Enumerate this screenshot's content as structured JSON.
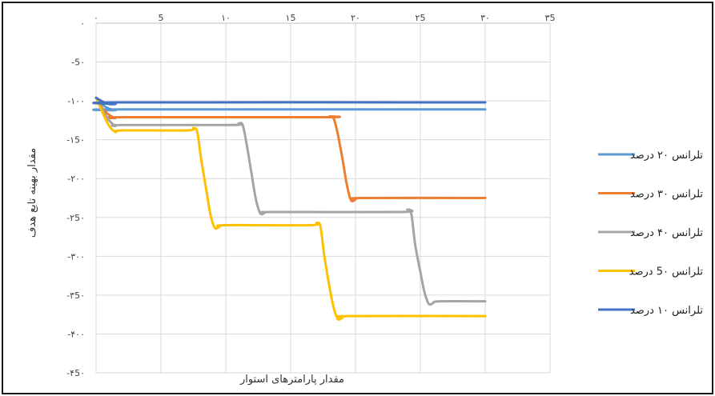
{
  "chart_data": {
    "type": "line",
    "title": "",
    "xlabel": "مقدار پارامترهای استوار",
    "ylabel": "مقدار بهینه تابع هدف",
    "xlim": [
      0,
      35
    ],
    "ylim": [
      -450,
      0
    ],
    "x_ticks": [
      0,
      5,
      10,
      15,
      20,
      25,
      30,
      35
    ],
    "x_tick_labels": [
      "۰",
      "5",
      "۱۰",
      "۱5",
      "۲۰",
      "۲5",
      "۳۰",
      "۳5"
    ],
    "y_ticks": [
      0,
      -50,
      -100,
      -150,
      -200,
      -250,
      -300,
      -350,
      -400,
      -450
    ],
    "y_tick_labels": [
      "۰",
      "-5۰",
      "-۱۰۰",
      "-۱5۰",
      "-۲۰۰",
      "-۲5۰",
      "-۳۰۰",
      "-۳5۰",
      "-۴۰۰",
      "-۴5۰"
    ],
    "grid": true,
    "legend_position": "right",
    "series": [
      {
        "name": "تلرانس ۲۰ درصد",
        "color": "#5b9bd5",
        "x": [
          0,
          0.5,
          1,
          1.5,
          2,
          30
        ],
        "y": [
          -96,
          -105,
          -110,
          -112,
          -111,
          -111
        ]
      },
      {
        "name": "تلرانس ۳۰ درصد",
        "color": "#ed7d31",
        "x": [
          0,
          0.5,
          1,
          1.5,
          2,
          17.5,
          18,
          18.3,
          18.6,
          19,
          19.3,
          19.6,
          19.8,
          20,
          20.5,
          30
        ],
        "y": [
          -96,
          -110,
          -118,
          -122,
          -121,
          -121,
          -120,
          -122,
          -140,
          -175,
          -205,
          -226,
          -229,
          -227,
          -225,
          -225
        ]
      },
      {
        "name": "تلرانس ۴۰ درصد",
        "color": "#a5a5a5",
        "x": [
          0,
          0.5,
          1,
          1.5,
          2,
          10.5,
          11,
          11.3,
          11.6,
          12,
          12.3,
          12.6,
          12.8,
          13,
          13.5,
          23.5,
          24,
          24.3,
          24.6,
          25,
          25.3,
          25.6,
          25.8,
          26,
          26.5,
          30
        ],
        "y": [
          -96,
          -112,
          -125,
          -132,
          -131,
          -131,
          -129,
          -131,
          -155,
          -195,
          -225,
          -243,
          -246,
          -244,
          -243,
          -243,
          -240,
          -245,
          -285,
          -320,
          -345,
          -360,
          -362,
          -360,
          -358,
          -358
        ]
      },
      {
        "name": "تلرانس 5۰ درصد",
        "color": "#ffc000",
        "x": [
          0,
          0.5,
          1,
          1.5,
          2,
          7,
          7.5,
          7.8,
          8.1,
          8.5,
          8.8,
          9.1,
          9.3,
          9.5,
          10,
          16.5,
          17,
          17.3,
          17.6,
          18,
          18.3,
          18.6,
          18.8,
          19,
          19.5,
          30
        ],
        "y": [
          -96,
          -115,
          -132,
          -140,
          -138,
          -138,
          -135,
          -140,
          -175,
          -215,
          -245,
          -262,
          -264,
          -262,
          -260,
          -260,
          -257,
          -262,
          -300,
          -340,
          -365,
          -380,
          -381,
          -379,
          -377,
          -377
        ]
      },
      {
        "name": "تلرانس ۱۰ درصد",
        "color": "#4472c4",
        "x": [
          0,
          0.5,
          1,
          1.5,
          2,
          30
        ],
        "y": [
          -96,
          -101,
          -104,
          -104,
          -102,
          -102
        ]
      }
    ],
    "legend_order": [
      0,
      1,
      2,
      3,
      4
    ]
  }
}
